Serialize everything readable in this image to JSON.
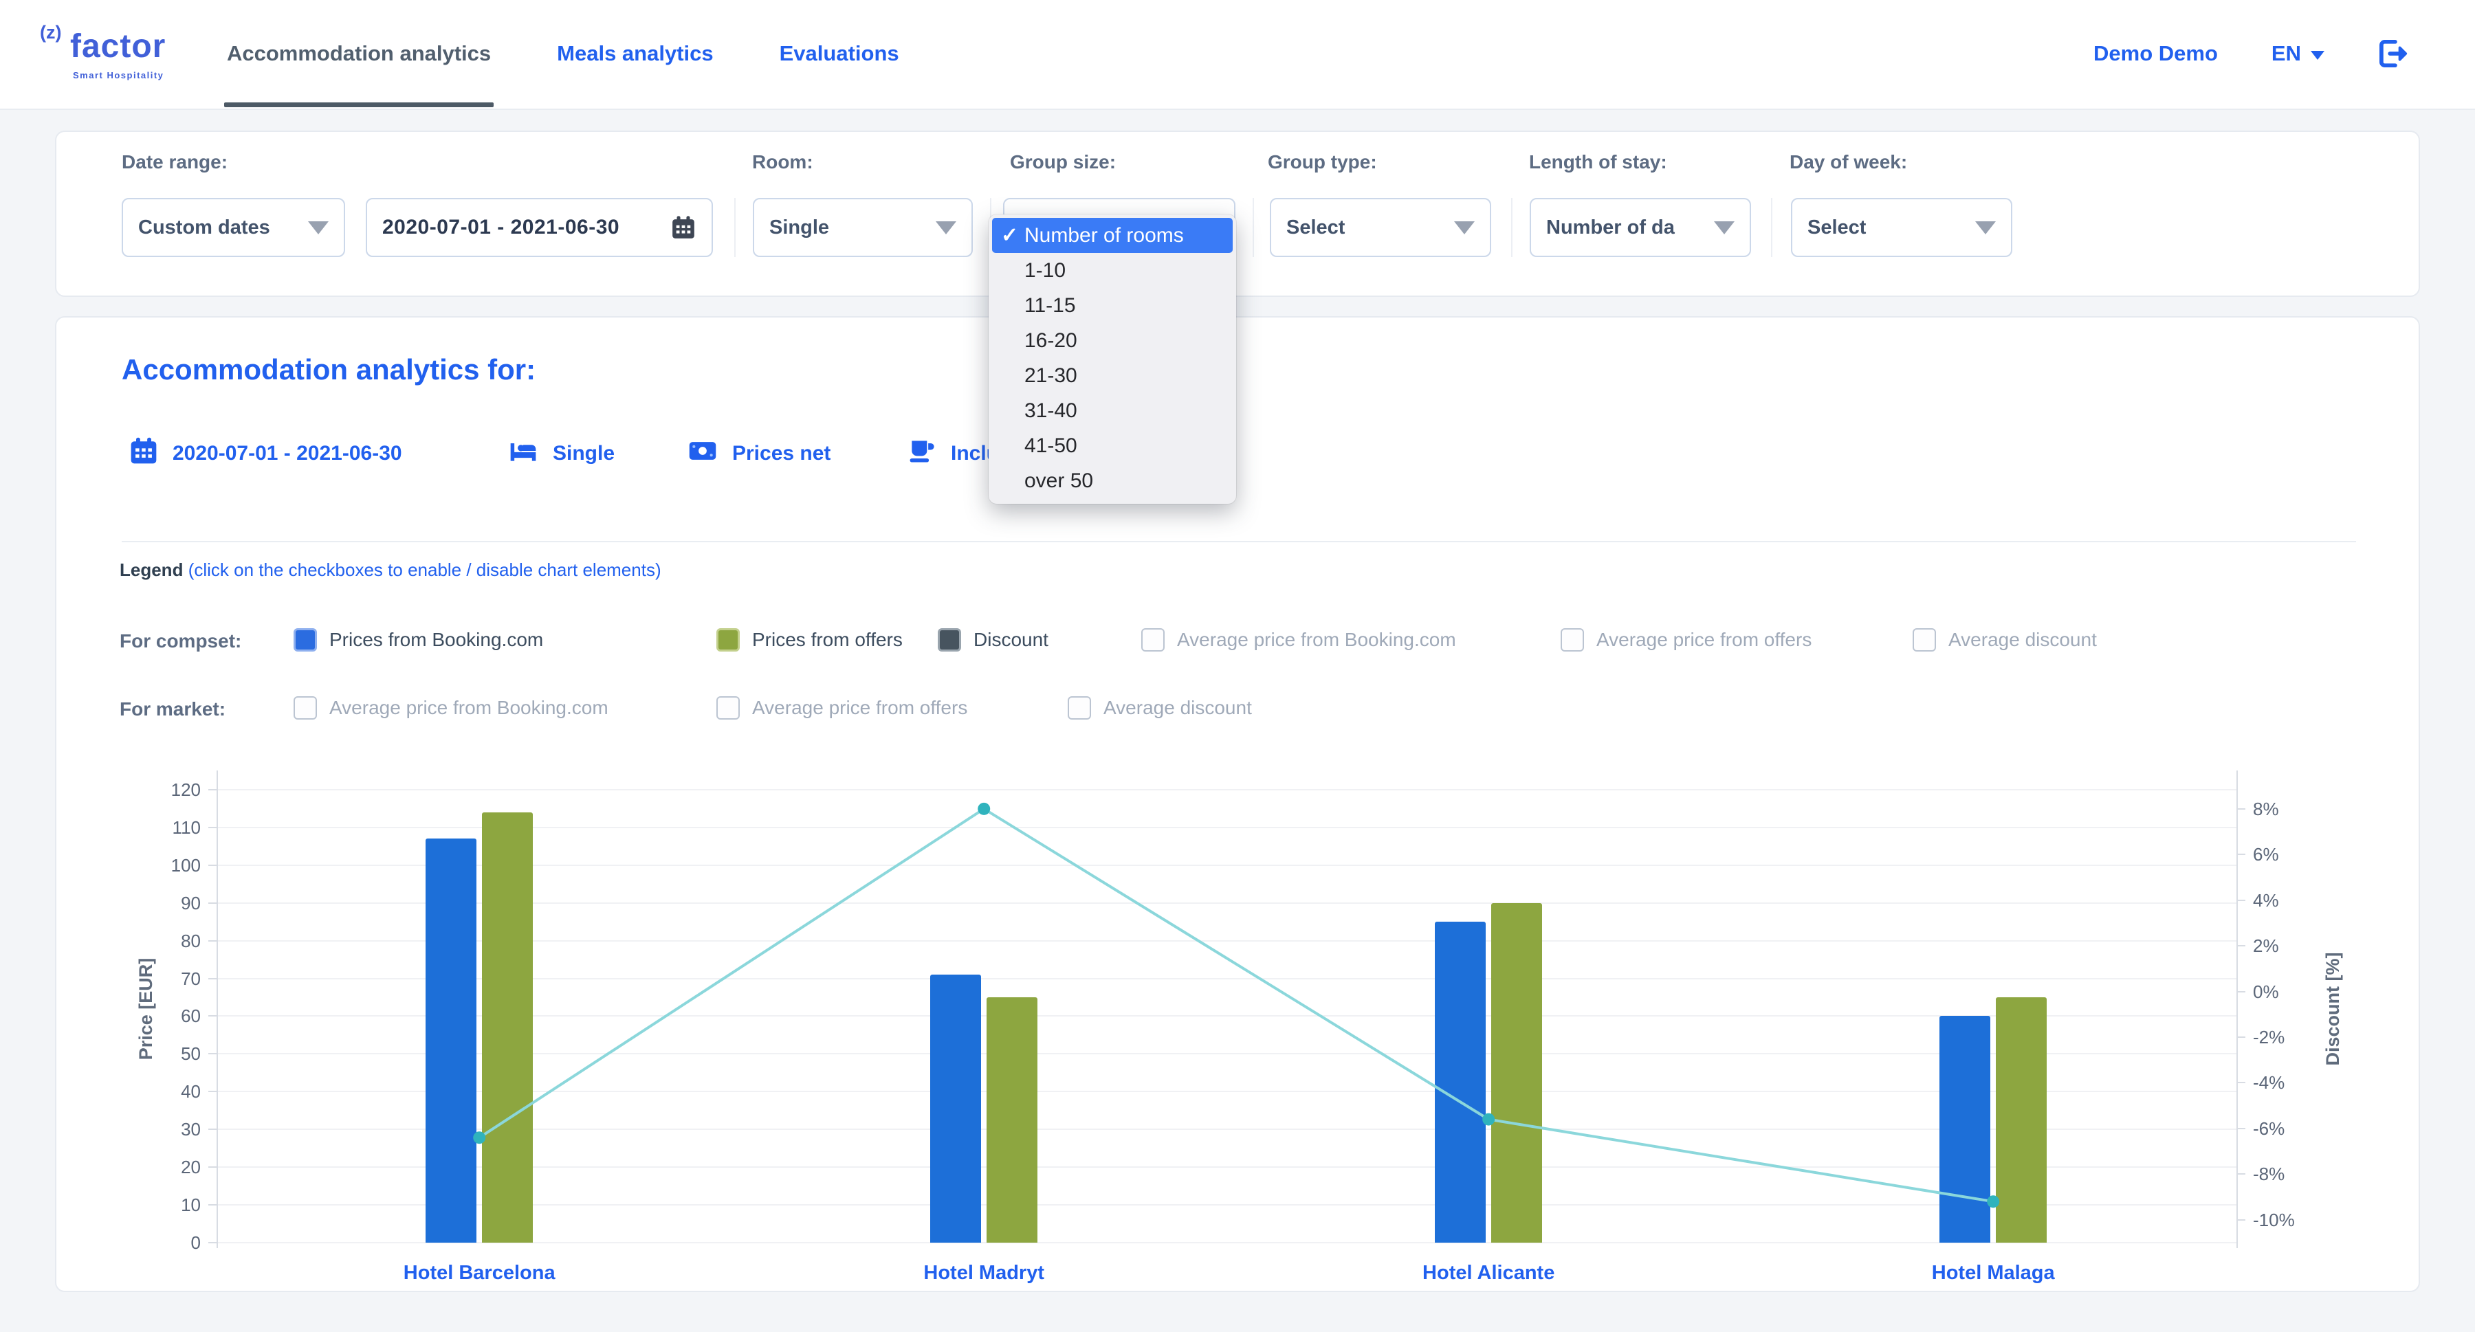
{
  "page": {
    "bg": "#f3f5f8",
    "accent_blue": "#2160ee"
  },
  "header": {
    "logo_sup": "(z)",
    "logo_name": "factor",
    "logo_tagline": "Smart Hospitality",
    "tabs": [
      {
        "label": "Accommodation analytics",
        "active": true
      },
      {
        "label": "Meals analytics",
        "active": false
      },
      {
        "label": "Evaluations",
        "active": false
      }
    ],
    "user": "Demo Demo",
    "language": "EN"
  },
  "filters": {
    "date_range_label": "Date range:",
    "date_mode": "Custom dates",
    "date_value": "2020-07-01 - 2021-06-30",
    "room_label": "Room:",
    "room_value": "Single",
    "group_size_label": "Group size:",
    "group_type_label": "Group type:",
    "group_type_value": "Select",
    "length_label": "Length of stay:",
    "length_value": "Number of da",
    "day_label": "Day of week:",
    "day_value": "Select",
    "group_size_dropdown": {
      "selected_index": 0,
      "options": [
        "Number of rooms",
        "1-10",
        "11-15",
        "16-20",
        "21-30",
        "31-40",
        "41-50",
        "over 50"
      ]
    }
  },
  "summary": {
    "title": "Accommodation analytics for:",
    "chips": [
      {
        "icon": "calendar-icon",
        "label": "2020-07-01 - 2021-06-30"
      },
      {
        "icon": "bed-icon",
        "label": "Single"
      },
      {
        "icon": "banknote-icon",
        "label": "Prices net"
      },
      {
        "icon": "cup-icon",
        "label": "Inclu"
      }
    ]
  },
  "legend": {
    "heading_bold": "Legend",
    "heading_note": "(click on the checkboxes to enable / disable chart elements)",
    "rows": [
      {
        "label": "For compset:",
        "items": [
          {
            "label": "Prices from Booking.com",
            "checked": true,
            "color": "#2b6ce0",
            "border": "#8fb0ef"
          },
          {
            "label": "Prices from offers",
            "checked": true,
            "color": "#8da640",
            "border": "#c3d08d"
          },
          {
            "label": "Discount",
            "checked": true,
            "color": "#47545f",
            "border": "#9aa5ae"
          },
          {
            "label": "Average price from Booking.com",
            "checked": false
          },
          {
            "label": "Average price from offers",
            "checked": false
          },
          {
            "label": "Average discount",
            "checked": false
          }
        ]
      },
      {
        "label": "For market:",
        "items": [
          {
            "label": "Average price from Booking.com",
            "checked": false
          },
          {
            "label": "Average price from offers",
            "checked": false
          },
          {
            "label": "Average discount",
            "checked": false
          }
        ]
      }
    ]
  },
  "chart_data": {
    "type": "bar+line",
    "categories": [
      "Hotel Barcelona",
      "Hotel Madryt",
      "Hotel Alicante",
      "Hotel Malaga"
    ],
    "series": [
      {
        "name": "Prices from Booking.com",
        "type": "bar",
        "axis": "left",
        "color": "#1d6fd8",
        "values": [
          107,
          71,
          85,
          60
        ]
      },
      {
        "name": "Prices from offers",
        "type": "bar",
        "axis": "left",
        "color": "#8da640",
        "values": [
          114,
          65,
          90,
          65
        ]
      },
      {
        "name": "Discount",
        "type": "line",
        "axis": "right",
        "color": "#8bd7db",
        "point_color": "#2fb3bd",
        "values": [
          -6.4,
          8,
          -5.6,
          -9.2
        ]
      }
    ],
    "left_axis": {
      "title": "Price [EUR]",
      "ticks": [
        0,
        10,
        20,
        30,
        40,
        50,
        60,
        70,
        80,
        90,
        100,
        110,
        120
      ],
      "range": [
        0,
        124
      ]
    },
    "right_axis": {
      "title": "Discount [%]",
      "ticks": [
        8,
        6,
        4,
        2,
        0,
        -2,
        -4,
        -6,
        -8,
        -10
      ],
      "tick_suffix": "%",
      "range": [
        -11,
        9.5
      ]
    },
    "grid": true,
    "legend_position": "above-chart"
  }
}
